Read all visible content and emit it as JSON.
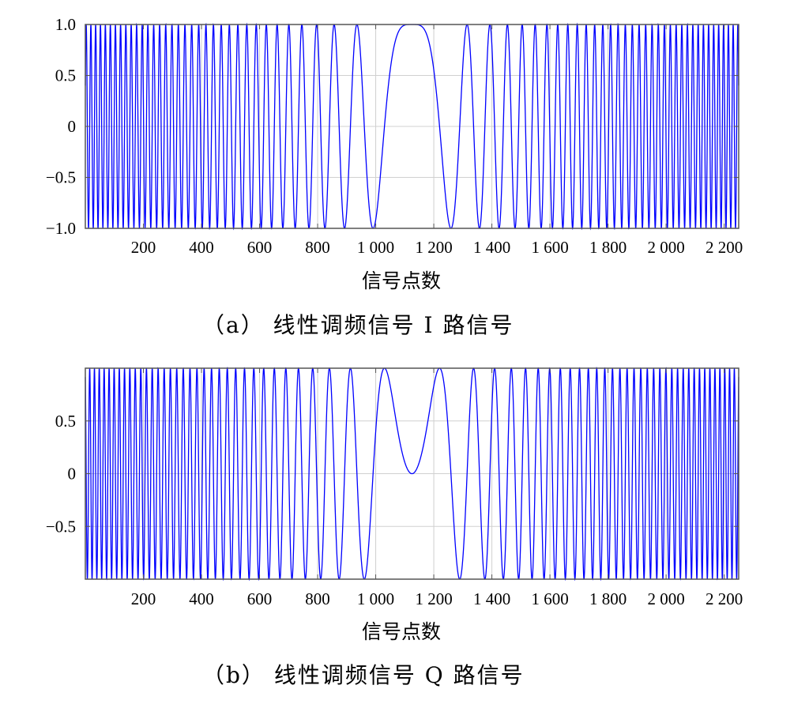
{
  "chart_data": [
    {
      "type": "line",
      "xlabel": "信号点数",
      "caption": "（a） 线性调频信号 I 路信号",
      "xlim": [
        0,
        2250
      ],
      "ylim": [
        -1.0,
        1.0
      ],
      "xticks": [
        200,
        400,
        600,
        800,
        1000,
        1200,
        1400,
        1600,
        1800,
        2000,
        2200
      ],
      "xtick_labels": [
        "200",
        "400",
        "600",
        "800",
        "1 000",
        "1 200",
        "1 400",
        "1 600",
        "1 800",
        "2 000",
        "2 200"
      ],
      "yticks": [
        1.0,
        0.5,
        0,
        -0.5,
        -1.0
      ],
      "ytick_labels": [
        "1.0",
        "0.5",
        "0",
        "−0.5",
        "−1.0"
      ],
      "grid": true,
      "series": [
        {
          "component": "in-phase",
          "function": "cos",
          "n_points": 2250,
          "center": 1125,
          "chirp_rate": 5.56e-05,
          "color": "#0000ff"
        }
      ]
    },
    {
      "type": "line",
      "xlabel": "信号点数",
      "caption": "（b） 线性调频信号 Q 路信号",
      "xlim": [
        0,
        2250
      ],
      "ylim": [
        -1.0,
        1.0
      ],
      "xticks": [
        200,
        400,
        600,
        800,
        1000,
        1200,
        1400,
        1600,
        1800,
        2000,
        2200
      ],
      "xtick_labels": [
        "200",
        "400",
        "600",
        "800",
        "1 000",
        "1 200",
        "1 400",
        "1 600",
        "1 800",
        "2 000",
        "2 200"
      ],
      "yticks": [
        0.5,
        0,
        -0.5
      ],
      "ytick_labels": [
        "0.5",
        "0",
        "−0.5"
      ],
      "grid": true,
      "series": [
        {
          "component": "quadrature",
          "function": "sin",
          "n_points": 2250,
          "center": 1125,
          "chirp_rate": 5.56e-05,
          "color": "#0000ff"
        }
      ]
    }
  ]
}
